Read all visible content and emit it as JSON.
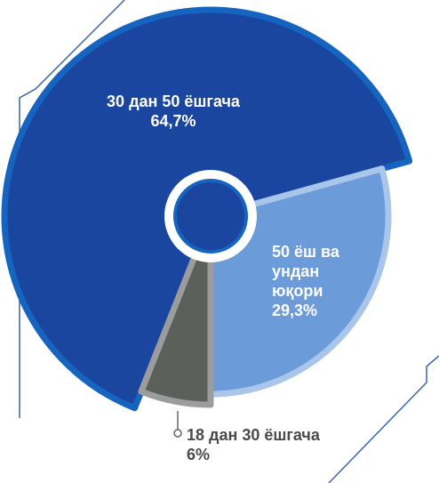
{
  "chart_data": {
    "type": "pie",
    "categories": [
      "30 дан 50 ёшгача",
      "50 ёш ва ундан юқори",
      "18 дан 30 ёшгача"
    ],
    "values": [
      64.7,
      29.3,
      6
    ],
    "value_labels": [
      "64,7%",
      "29,3%",
      "6%"
    ],
    "colors": [
      "#1a46a0",
      "#6b9bd9",
      "#5b605b"
    ]
  }
}
